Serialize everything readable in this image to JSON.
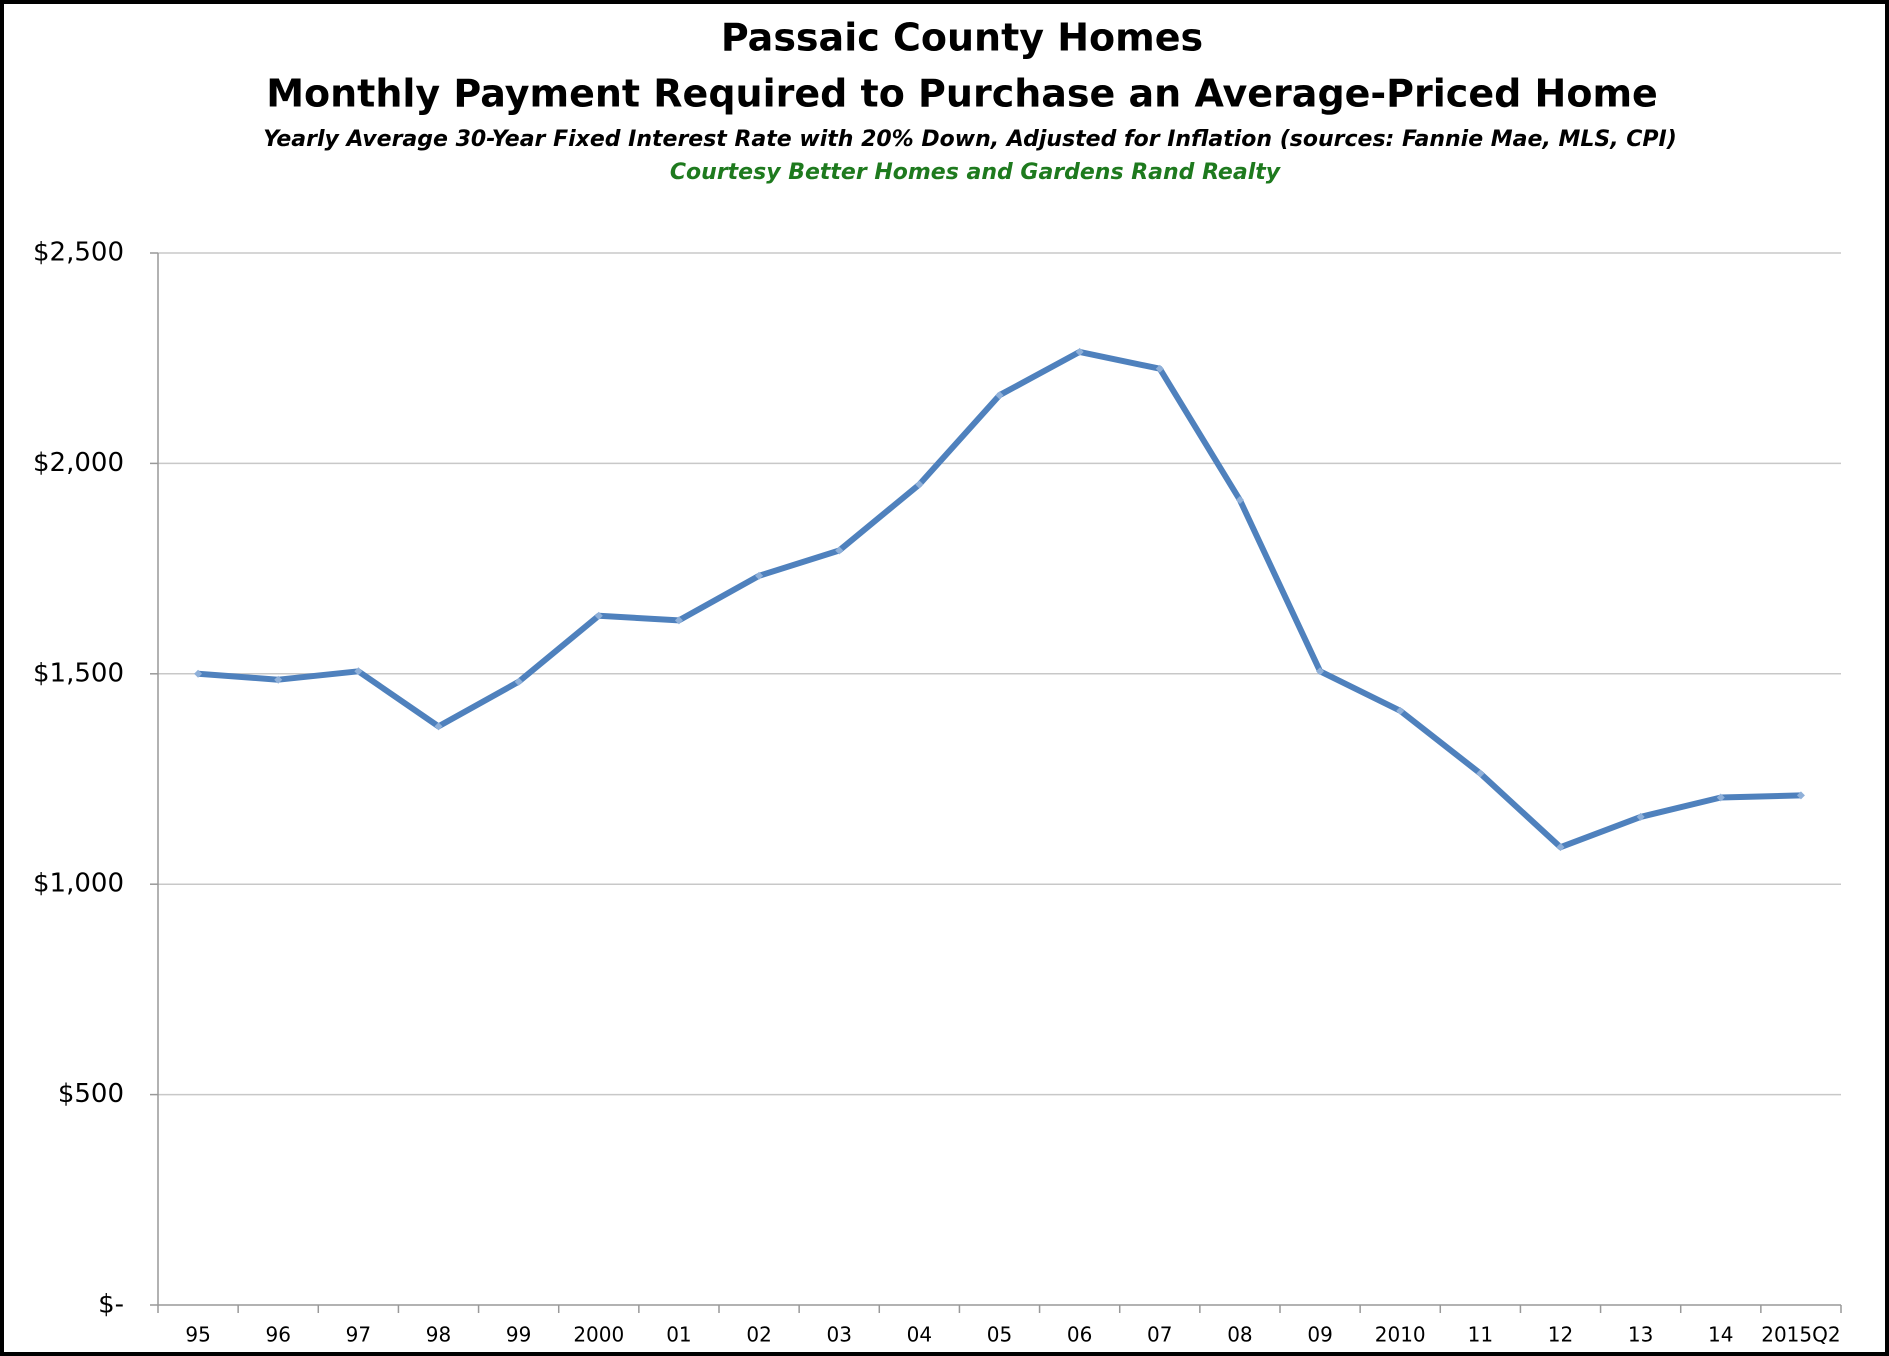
{
  "chart_data": {
    "type": "line",
    "title": "Passaic County Homes",
    "subtitle": "Monthly Payment Required to Purchase an Average-Priced Home",
    "note": "Yearly Average 30-Year Fixed Interest Rate with 20% Down, Adjusted for Inflation (sources: Fannie Mae, MLS, CPI)",
    "credit": "Courtesy Better Homes and Gardens Rand Realty",
    "categories": [
      "95",
      "96",
      "97",
      "98",
      "99",
      "2000",
      "01",
      "02",
      "03",
      "04",
      "05",
      "06",
      "07",
      "08",
      "09",
      "2010",
      "11",
      "12",
      "13",
      "14",
      "2015Q2"
    ],
    "values": [
      1500,
      1486,
      1506,
      1375,
      1481,
      1638,
      1627,
      1733,
      1793,
      1950,
      2162,
      2265,
      2225,
      1913,
      1506,
      1412,
      1263,
      1088,
      1160,
      1206,
      1211
    ],
    "color": "#4f81bd",
    "ylim": [
      0,
      2500
    ],
    "yticks": [
      {
        "value": 0,
        "label": "$-"
      },
      {
        "value": 500,
        "label": "$500"
      },
      {
        "value": 1000,
        "label": "$1,000"
      },
      {
        "value": 1500,
        "label": "$1,500"
      },
      {
        "value": 2000,
        "label": "$2,000"
      },
      {
        "value": 2500,
        "label": "$2,500"
      }
    ],
    "grid": true
  }
}
